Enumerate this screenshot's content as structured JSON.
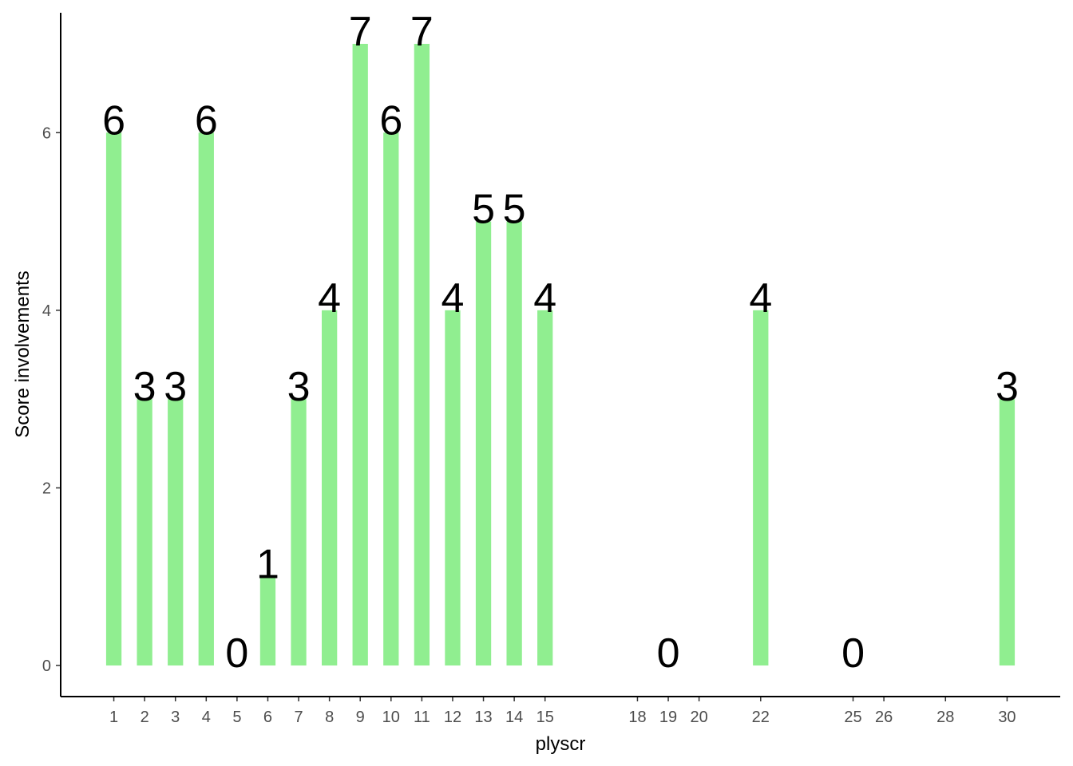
{
  "chart_data": {
    "type": "bar",
    "x_label": "plyscr",
    "y_label": "Score involvements",
    "x": [
      1,
      2,
      3,
      4,
      5,
      6,
      7,
      8,
      9,
      10,
      11,
      12,
      13,
      14,
      15,
      19,
      22,
      25,
      30
    ],
    "values": [
      6,
      3,
      3,
      6,
      0,
      1,
      3,
      4,
      7,
      6,
      7,
      4,
      5,
      5,
      4,
      0,
      4,
      0,
      3
    ],
    "color": "#90ee90",
    "xlim": [
      -0.725,
      31.725
    ],
    "xticks": [
      1,
      2,
      3,
      4,
      5,
      6,
      7,
      8,
      9,
      10,
      11,
      12,
      13,
      14,
      15,
      18,
      19,
      20,
      22,
      25,
      26,
      28,
      30
    ],
    "ylim": [
      -0.35,
      7.35
    ],
    "yticks": [
      0,
      2,
      4,
      6
    ],
    "grid": false
  }
}
